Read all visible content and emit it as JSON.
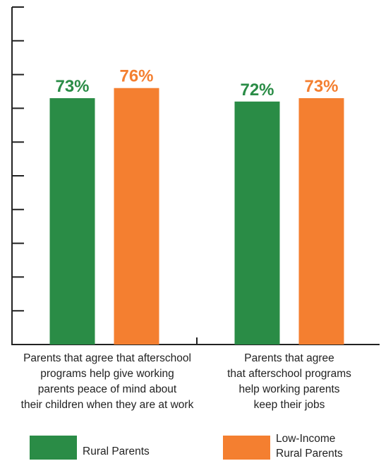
{
  "chart_data": {
    "type": "bar",
    "categories": [
      "Parents that agree that afterschool\nprograms help give working\nparents peace of mind about\ntheir children when they are at work",
      "Parents that agree\nthat afterschool programs\nhelp working parents\nkeep their jobs"
    ],
    "series": [
      {
        "name": "Rural Parents",
        "values": [
          73,
          72
        ],
        "labels": [
          "73%",
          "72%"
        ],
        "color": "#2a8c46"
      },
      {
        "name": "Low-Income\nRural Parents",
        "values": [
          76,
          73
        ],
        "labels": [
          "76%",
          "73%"
        ],
        "color": "#f47f30"
      }
    ],
    "ylim": [
      0,
      100
    ],
    "y_ticks": 10,
    "grid": false,
    "legend_position": "bottom",
    "axis_color": "#222222"
  }
}
